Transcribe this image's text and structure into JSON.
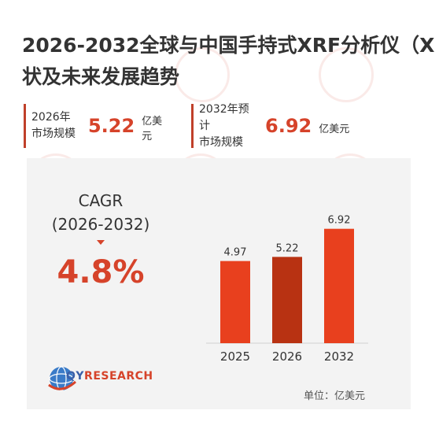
{
  "title": {
    "line1": "2026-2032全球与中国手持式XRF分析仪（X",
    "line2": "状及未来发展趋势"
  },
  "stats": [
    {
      "label_line1": "2026年",
      "label_line2": "市场规模",
      "value": "5.22",
      "unit": "亿美元"
    },
    {
      "label_line1": "2032年预计",
      "label_line2": "市场规模",
      "value": "6.92",
      "unit": "亿美元"
    }
  ],
  "cagr": {
    "label_line1": "CAGR",
    "label_line2": "(2026-2032)",
    "value": "4.8%"
  },
  "logo": {
    "text_part1": "QY",
    "text_part2": "RESEARCH"
  },
  "unit_note": "单位：亿美元",
  "colors": {
    "accent": "#d6432a",
    "bar_light": "#e8401e",
    "bar_dark": "#b83212",
    "panel": "#f3f3f3"
  },
  "chart_data": {
    "type": "bar",
    "categories": [
      "2025",
      "2026",
      "2032"
    ],
    "values": [
      4.97,
      5.22,
      6.92
    ],
    "data_labels": [
      "4.97",
      "5.22",
      "6.92"
    ],
    "ylim": [
      0,
      8
    ],
    "bar_colors": [
      "#e8401e",
      "#b83212",
      "#e8401e"
    ],
    "grid": false,
    "legend": "none"
  }
}
